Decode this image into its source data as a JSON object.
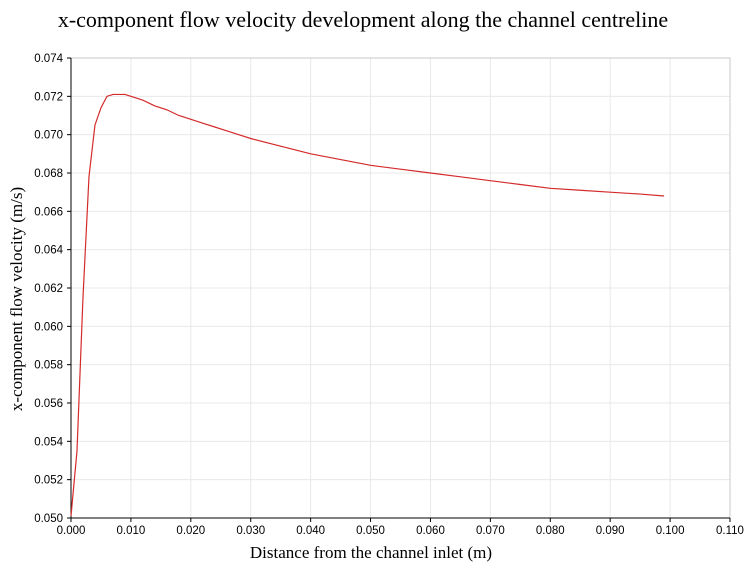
{
  "chart_data": {
    "type": "line",
    "title": "x-component flow velocity development along the channel centreline",
    "xlabel": "Distance from the channel inlet (m)",
    "ylabel": "x-component flow velocity (m/s)",
    "xlim": [
      0.0,
      0.11
    ],
    "ylim": [
      0.05,
      0.074
    ],
    "xticks": [
      "0.000",
      "0.010",
      "0.020",
      "0.030",
      "0.040",
      "0.050",
      "0.060",
      "0.070",
      "0.080",
      "0.090",
      "0.100",
      "0.110"
    ],
    "yticks": [
      "0.050",
      "0.052",
      "0.054",
      "0.056",
      "0.058",
      "0.060",
      "0.062",
      "0.064",
      "0.066",
      "0.068",
      "0.070",
      "0.072",
      "0.074"
    ],
    "grid": true,
    "series": [
      {
        "color": "#d42a2a",
        "x": [
          0.0,
          0.001,
          0.002,
          0.003,
          0.004,
          0.005,
          0.006,
          0.007,
          0.008,
          0.009,
          0.01,
          0.012,
          0.014,
          0.016,
          0.018,
          0.02,
          0.022,
          0.024,
          0.026,
          0.028,
          0.03,
          0.035,
          0.04,
          0.045,
          0.05,
          0.055,
          0.06,
          0.065,
          0.07,
          0.075,
          0.08,
          0.085,
          0.09,
          0.095,
          0.099
        ],
        "y": [
          0.0501,
          0.0535,
          0.0615,
          0.0678,
          0.0705,
          0.0714,
          0.072,
          0.0721,
          0.0721,
          0.0721,
          0.072,
          0.0718,
          0.0715,
          0.0713,
          0.071,
          0.0708,
          0.0706,
          0.0704,
          0.0702,
          0.07,
          0.0698,
          0.0694,
          0.069,
          0.0687,
          0.0684,
          0.0682,
          0.068,
          0.0678,
          0.0676,
          0.0674,
          0.0672,
          0.0671,
          0.067,
          0.0669,
          0.0668
        ]
      }
    ]
  }
}
